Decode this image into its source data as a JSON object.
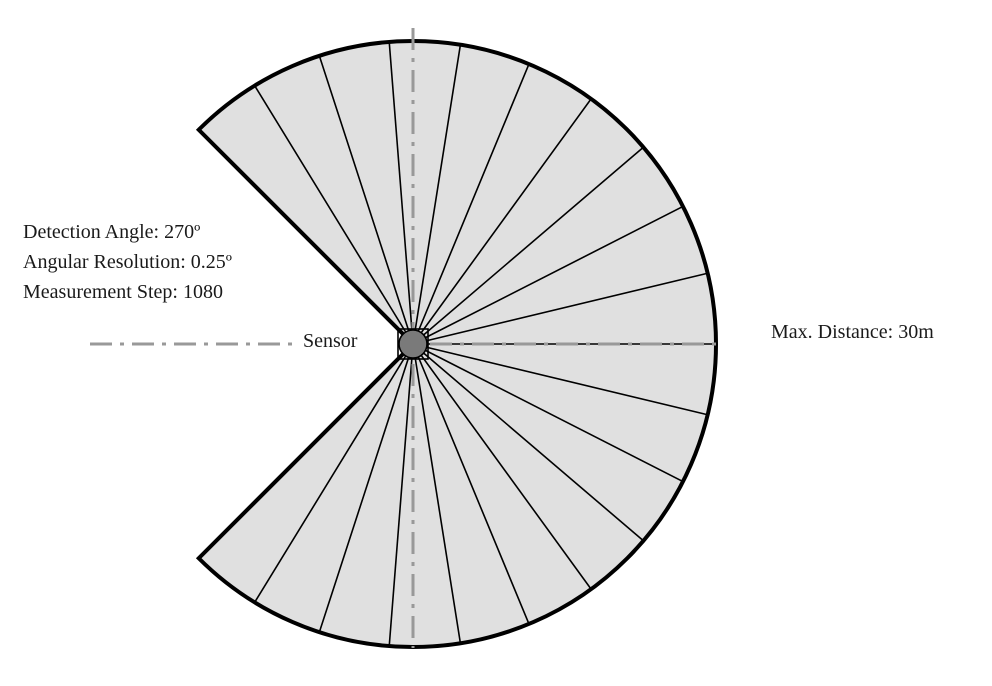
{
  "specs": {
    "detection_angle": "Detection Angle: 270º",
    "angular_resolution": "Angular Resolution: 0.25º",
    "measurement_step": "Measurement Step: 1080"
  },
  "labels": {
    "sensor": "Sensor",
    "max_distance": "Max. Distance: 30m"
  },
  "scan": {
    "detection_angle_deg": 270,
    "spoke_count": 19,
    "colors": {
      "fill": "#e0e0e0",
      "outline": "#000000",
      "axis": "#999999",
      "sensor": "#7a7a7a"
    }
  }
}
